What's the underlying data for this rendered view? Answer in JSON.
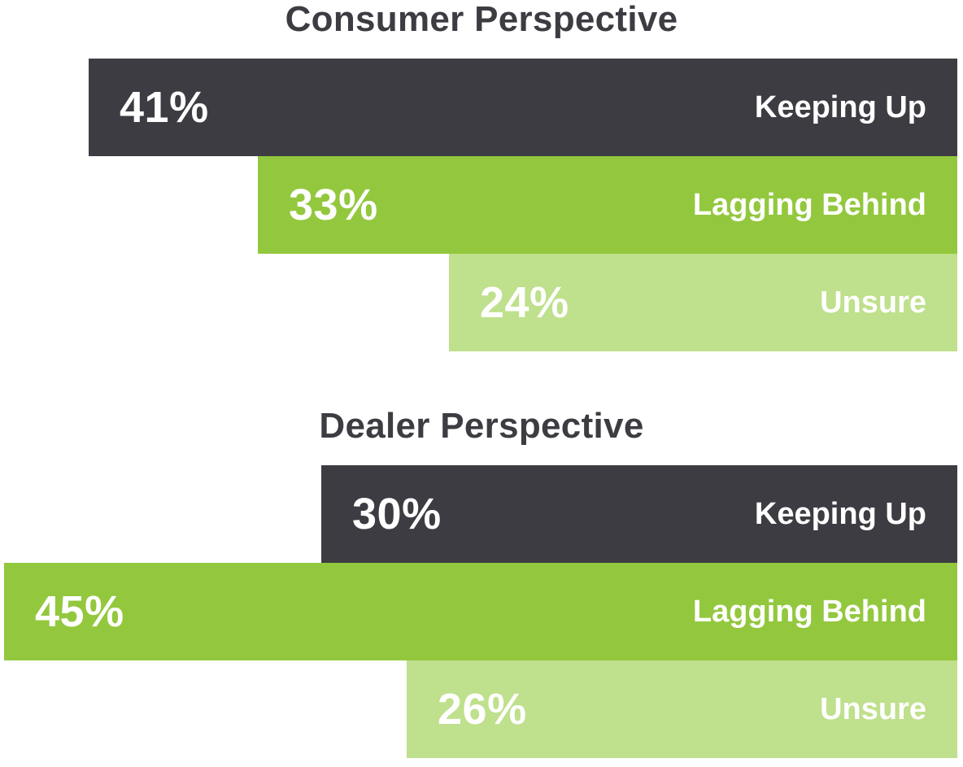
{
  "chart_data": [
    {
      "type": "bar",
      "title": "Consumer Perspective",
      "categories": [
        "Keeping Up",
        "Lagging Behind",
        "Unsure"
      ],
      "values": [
        41,
        33,
        24
      ],
      "value_labels": [
        "41%",
        "33%",
        "24%"
      ],
      "colors": [
        "#3d3c42",
        "#93c83e",
        "#bfe08c"
      ]
    },
    {
      "type": "bar",
      "title": "Dealer Perspective",
      "categories": [
        "Keeping Up",
        "Lagging Behind",
        "Unsure"
      ],
      "values": [
        30,
        45,
        26
      ],
      "value_labels": [
        "30%",
        "45%",
        "26%"
      ],
      "colors": [
        "#3d3c42",
        "#93c83e",
        "#bfe08c"
      ]
    }
  ]
}
